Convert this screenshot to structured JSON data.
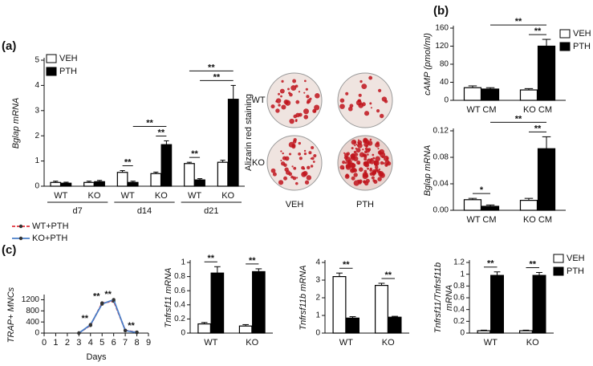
{
  "image_panel": {
    "title": "Alizarin red staining",
    "rows": [
      "WT",
      "KO"
    ],
    "columns": [
      "VEH",
      "PTH"
    ]
  },
  "chart_data": [
    {
      "type": "bar",
      "panel": "(a)",
      "ylabel": "Bglap mRNA",
      "categories": [
        "WT",
        "KO",
        "WT",
        "KO",
        "WT",
        "KO"
      ],
      "groups": [
        "d7",
        "d14",
        "d21"
      ],
      "series": [
        {
          "name": "VEH",
          "color": "#ffffff",
          "values": [
            0.15,
            0.15,
            0.55,
            0.5,
            0.9,
            0.95
          ],
          "errors": [
            0.05,
            0.05,
            0.07,
            0.06,
            0.05,
            0.08
          ]
        },
        {
          "name": "PTH",
          "color": "#000000",
          "values": [
            0.12,
            0.18,
            0.15,
            1.65,
            0.25,
            3.45
          ],
          "errors": [
            0.04,
            0.05,
            0.05,
            0.15,
            0.05,
            0.55
          ]
        }
      ],
      "ylim": [
        0,
        5
      ],
      "yticks": [
        0,
        1,
        2,
        3,
        4,
        5
      ],
      "legend": "upper left",
      "annotations": [
        "**",
        "**",
        "**",
        "**",
        "**",
        "**"
      ]
    },
    {
      "type": "bar",
      "panel": "(b)",
      "ylabel": "cAMP (pmol/ml)",
      "categories": [
        "WT CM",
        "KO CM"
      ],
      "series": [
        {
          "name": "VEH",
          "color": "#ffffff",
          "values": [
            28,
            23
          ],
          "errors": [
            4,
            3
          ]
        },
        {
          "name": "PTH",
          "color": "#000000",
          "values": [
            25,
            120
          ],
          "errors": [
            3,
            15
          ]
        }
      ],
      "ylim": [
        0,
        160
      ],
      "yticks": [
        0,
        40,
        80,
        120,
        160
      ],
      "legend": "right",
      "annotations": [
        "**",
        "**"
      ]
    },
    {
      "type": "bar",
      "ylabel": "Bglap mRNA",
      "categories": [
        "WT CM",
        "KO CM"
      ],
      "series": [
        {
          "color": "#ffffff",
          "values": [
            0.016,
            0.015
          ],
          "errors": [
            0.002,
            0.003
          ]
        },
        {
          "color": "#000000",
          "values": [
            0.006,
            0.093
          ],
          "errors": [
            0.002,
            0.018
          ]
        }
      ],
      "ylim": [
        0,
        0.12
      ],
      "yticks": [
        {
          "value": 0,
          "label": "0.00"
        },
        0.04,
        0.08,
        0.12
      ],
      "annotations": [
        "*",
        "**",
        "**"
      ]
    },
    {
      "type": "line",
      "panel": "(c)",
      "ylabel": "TRAP+ MNCs",
      "xlabel": "Days",
      "x": [
        3,
        4,
        5,
        6,
        7,
        8
      ],
      "series": [
        {
          "name": "WT+PTH",
          "color": "#e0303a",
          "linestyle": "dashed",
          "values": [
            0,
            280,
            1080,
            1150,
            100,
            30
          ]
        },
        {
          "name": "KO+PTH",
          "color": "#4a7fc8",
          "linestyle": "solid",
          "values": [
            0,
            300,
            1050,
            1200,
            90,
            20
          ]
        }
      ],
      "xlim": [
        0,
        9
      ],
      "xticks": [
        0,
        1,
        2,
        3,
        4,
        5,
        6,
        7,
        8,
        9
      ],
      "ylim": [
        0,
        1300
      ],
      "yticks": [
        0,
        400,
        800,
        1200
      ],
      "legend": "upper left",
      "annotations": [
        "**",
        "**",
        "**",
        "**"
      ]
    },
    {
      "type": "bar",
      "ylabel": "Tnfrsf11 mRNA",
      "categories": [
        "WT",
        "KO"
      ],
      "series": [
        {
          "color": "#ffffff",
          "values": [
            0.13,
            0.1
          ],
          "errors": [
            0.02,
            0.02
          ]
        },
        {
          "color": "#000000",
          "values": [
            0.85,
            0.87
          ],
          "errors": [
            0.09,
            0.04
          ]
        }
      ],
      "ylim": [
        0,
        1
      ],
      "yticks": [
        0,
        0.2,
        0.4,
        0.6,
        0.8,
        1
      ],
      "annotations": [
        "**",
        "**"
      ]
    },
    {
      "type": "bar",
      "ylabel": "Tnfrsf11b mRNA",
      "categories": [
        "WT",
        "KO"
      ],
      "series": [
        {
          "color": "#ffffff",
          "values": [
            3.2,
            2.7
          ],
          "errors": [
            0.2,
            0.12
          ]
        },
        {
          "color": "#000000",
          "values": [
            0.85,
            0.9
          ],
          "errors": [
            0.08,
            0.05
          ]
        }
      ],
      "ylim": [
        0,
        4
      ],
      "yticks": [
        0,
        1,
        2,
        3,
        4
      ],
      "annotations": [
        "**",
        "**"
      ]
    },
    {
      "type": "bar",
      "ylabel": [
        "Tnfrsf11/Tnfrsf11b",
        "mRNA"
      ],
      "categories": [
        "WT",
        "KO"
      ],
      "series": [
        {
          "name": "VEH",
          "color": "#ffffff",
          "values": [
            0.04,
            0.04
          ],
          "errors": [
            0.01,
            0.01
          ]
        },
        {
          "name": "PTH",
          "color": "#000000",
          "values": [
            0.98,
            0.98
          ],
          "errors": [
            0.06,
            0.05
          ]
        }
      ],
      "ylim": [
        0,
        1.2
      ],
      "yticks": [
        0,
        0.2,
        0.4,
        0.6,
        0.8,
        1,
        1.2
      ],
      "legend": "right",
      "annotations": [
        "**",
        "**"
      ]
    }
  ]
}
